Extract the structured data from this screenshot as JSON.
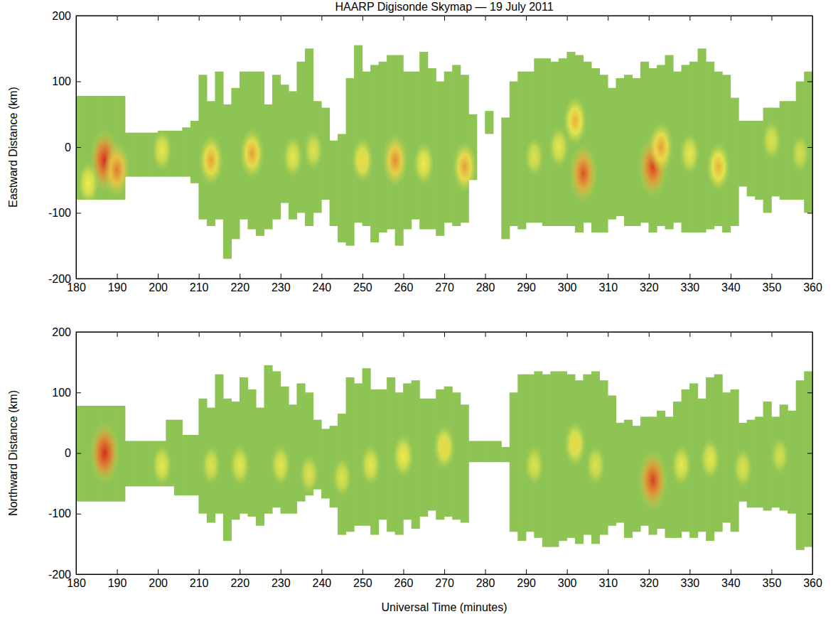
{
  "chart_data": [
    {
      "type": "heatmap",
      "title": "HAARP Digisonde Skymap — 19 July 2011",
      "y_label": "Eastward Distance (km)",
      "xlim": [
        180,
        360
      ],
      "ylim": [
        -200,
        200
      ],
      "xticks": [
        180,
        190,
        200,
        210,
        220,
        230,
        240,
        250,
        260,
        270,
        280,
        290,
        300,
        310,
        320,
        330,
        340,
        350,
        360
      ],
      "yticks": [
        -200,
        -100,
        0,
        100,
        200
      ],
      "zlim": [
        0,
        1
      ],
      "bins": [
        180,
        182,
        184,
        186,
        188,
        190,
        192,
        194,
        196,
        198,
        200,
        202,
        204,
        206,
        208,
        210,
        212,
        214,
        216,
        218,
        220,
        222,
        224,
        226,
        228,
        230,
        232,
        234,
        236,
        238,
        240,
        242,
        244,
        246,
        248,
        250,
        252,
        254,
        256,
        258,
        260,
        262,
        264,
        266,
        268,
        270,
        272,
        274,
        276,
        278,
        280,
        282,
        284,
        286,
        288,
        290,
        292,
        294,
        296,
        298,
        300,
        302,
        304,
        306,
        308,
        310,
        312,
        314,
        316,
        318,
        320,
        322,
        324,
        326,
        328,
        330,
        332,
        334,
        336,
        338,
        340,
        342,
        344,
        346,
        348,
        350,
        352,
        354,
        356,
        358,
        360
      ],
      "lower": [
        -80,
        -80,
        -80,
        -80,
        -80,
        -80,
        -45,
        -45,
        -45,
        -45,
        -45,
        -45,
        -45,
        -45,
        -55,
        -110,
        -120,
        -110,
        -170,
        -140,
        -110,
        -125,
        -135,
        -125,
        -110,
        -85,
        -110,
        -100,
        -120,
        -100,
        -80,
        -120,
        -145,
        -150,
        -115,
        -120,
        -145,
        -130,
        -125,
        -150,
        -125,
        -110,
        -125,
        -125,
        -135,
        -115,
        -120,
        -115,
        -50,
        null,
        20,
        null,
        -140,
        -120,
        -125,
        -115,
        -115,
        -120,
        -120,
        -120,
        -120,
        -130,
        -115,
        -130,
        -130,
        -110,
        -105,
        -120,
        -120,
        -115,
        -130,
        -120,
        -125,
        -115,
        -130,
        -130,
        -130,
        -125,
        -120,
        -130,
        -120,
        -60,
        -75,
        -80,
        -100,
        -75,
        -80,
        -80,
        -80,
        -100
      ],
      "upper": [
        78,
        78,
        78,
        78,
        78,
        78,
        22,
        22,
        22,
        22,
        25,
        25,
        25,
        30,
        40,
        110,
        70,
        115,
        65,
        90,
        115,
        115,
        115,
        65,
        110,
        95,
        85,
        130,
        150,
        70,
        60,
        10,
        20,
        105,
        155,
        115,
        125,
        130,
        140,
        140,
        115,
        115,
        145,
        120,
        100,
        115,
        125,
        110,
        50,
        null,
        55,
        null,
        45,
        100,
        115,
        115,
        135,
        135,
        130,
        135,
        145,
        140,
        130,
        120,
        110,
        90,
        105,
        110,
        105,
        130,
        120,
        125,
        140,
        115,
        125,
        130,
        150,
        130,
        115,
        110,
        75,
        40,
        40,
        40,
        60,
        60,
        70,
        70,
        100,
        115
      ],
      "spots": {
        "x": [
          187,
          190,
          183,
          201,
          213,
          223,
          233,
          238,
          250,
          258,
          265,
          275,
          292,
          302,
          304,
          298,
          321,
          323,
          330,
          337,
          350,
          357
        ],
        "y": [
          -20,
          -35,
          -55,
          -5,
          -20,
          -10,
          -15,
          -5,
          -20,
          -20,
          -25,
          -30,
          -15,
          40,
          -40,
          0,
          -30,
          0,
          -10,
          -30,
          10,
          -10
        ],
        "intensity": [
          1.0,
          0.8,
          0.5,
          0.45,
          0.7,
          0.7,
          0.45,
          0.4,
          0.55,
          0.75,
          0.5,
          0.7,
          0.4,
          0.65,
          0.9,
          0.45,
          0.95,
          0.7,
          0.45,
          0.65,
          0.4,
          0.35
        ]
      }
    },
    {
      "type": "heatmap",
      "y_label": "Northward Distance (km)",
      "x_label": "Universal Time (minutes)",
      "xlim": [
        180,
        360
      ],
      "ylim": [
        -200,
        200
      ],
      "xticks": [
        180,
        190,
        200,
        210,
        220,
        230,
        240,
        250,
        260,
        270,
        280,
        290,
        300,
        310,
        320,
        330,
        340,
        350,
        360
      ],
      "yticks": [
        -200,
        -100,
        0,
        100,
        200
      ],
      "zlim": [
        0,
        1
      ],
      "bins": [
        180,
        182,
        184,
        186,
        188,
        190,
        192,
        194,
        196,
        198,
        200,
        202,
        204,
        206,
        208,
        210,
        212,
        214,
        216,
        218,
        220,
        222,
        224,
        226,
        228,
        230,
        232,
        234,
        236,
        238,
        240,
        242,
        244,
        246,
        248,
        250,
        252,
        254,
        256,
        258,
        260,
        262,
        264,
        266,
        268,
        270,
        272,
        274,
        276,
        278,
        280,
        282,
        284,
        286,
        288,
        290,
        292,
        294,
        296,
        298,
        300,
        302,
        304,
        306,
        308,
        310,
        312,
        314,
        316,
        318,
        320,
        322,
        324,
        326,
        328,
        330,
        332,
        334,
        336,
        338,
        340,
        342,
        344,
        346,
        348,
        350,
        352,
        354,
        356,
        358,
        360
      ],
      "lower": [
        -80,
        -80,
        -80,
        -80,
        -80,
        -80,
        -55,
        -55,
        -55,
        -55,
        -55,
        -55,
        -70,
        -70,
        -70,
        -100,
        -115,
        -100,
        -145,
        -110,
        -100,
        -105,
        -120,
        -100,
        -90,
        -100,
        -100,
        -80,
        -70,
        -60,
        -75,
        -90,
        -135,
        -130,
        -120,
        -120,
        -135,
        -110,
        -130,
        -135,
        -110,
        -125,
        -105,
        -95,
        -110,
        -105,
        -110,
        -115,
        -15,
        -15,
        -15,
        -15,
        -15,
        -130,
        -145,
        -130,
        -140,
        -155,
        -155,
        -145,
        -140,
        -150,
        -135,
        -150,
        -135,
        -120,
        -115,
        -140,
        -130,
        -120,
        -135,
        -125,
        -140,
        -140,
        -130,
        -140,
        -130,
        -145,
        -130,
        -115,
        -130,
        -80,
        -90,
        -90,
        -95,
        -90,
        -95,
        -100,
        -160,
        -155
      ],
      "upper": [
        78,
        78,
        78,
        78,
        78,
        78,
        20,
        20,
        20,
        20,
        20,
        55,
        55,
        30,
        30,
        90,
        75,
        130,
        90,
        85,
        125,
        105,
        75,
        145,
        135,
        110,
        80,
        115,
        100,
        55,
        40,
        45,
        65,
        125,
        115,
        140,
        105,
        105,
        125,
        100,
        115,
        120,
        90,
        90,
        105,
        110,
        100,
        80,
        20,
        20,
        20,
        20,
        10,
        100,
        130,
        130,
        135,
        130,
        135,
        135,
        130,
        120,
        130,
        135,
        120,
        95,
        50,
        55,
        45,
        60,
        60,
        70,
        60,
        85,
        105,
        115,
        90,
        125,
        130,
        100,
        105,
        50,
        55,
        60,
        85,
        60,
        80,
        70,
        120,
        135
      ],
      "spots": {
        "x": [
          187,
          201,
          213,
          220,
          230,
          237,
          245,
          252,
          260,
          270,
          292,
          302,
          307,
          321,
          328,
          335,
          343,
          352
        ],
        "y": [
          0,
          -20,
          -20,
          -20,
          -20,
          -35,
          -40,
          -20,
          -5,
          10,
          -20,
          15,
          -20,
          -45,
          -20,
          -10,
          -25,
          -5
        ],
        "intensity": [
          1.0,
          0.45,
          0.4,
          0.45,
          0.45,
          0.4,
          0.4,
          0.45,
          0.5,
          0.55,
          0.4,
          0.55,
          0.4,
          0.95,
          0.45,
          0.45,
          0.4,
          0.35
        ]
      }
    }
  ]
}
